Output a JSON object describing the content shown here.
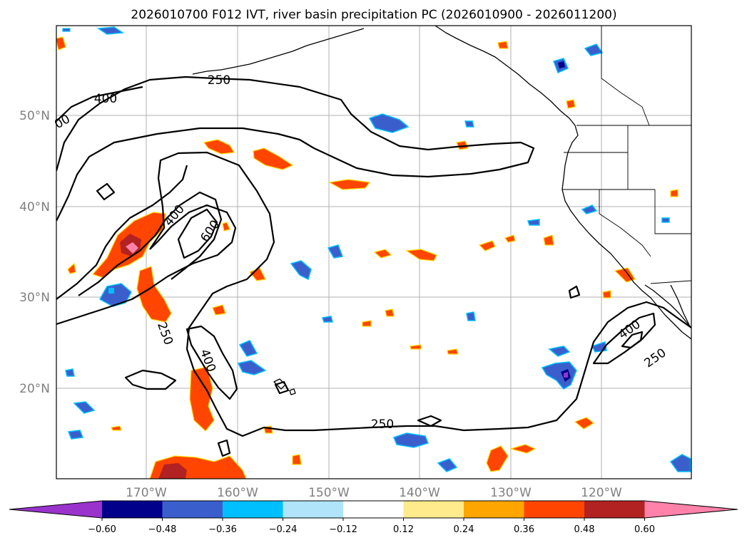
{
  "title": "2026010700 F012 IVT, river basin precipitation PC (2026010900 - 2026011200)",
  "map": {
    "lat_labels": [
      "50°N",
      "40°N",
      "30°N",
      "20°N"
    ],
    "lon_labels": [
      "170°W",
      "160°W",
      "150°W",
      "140°W",
      "130°W",
      "120°W"
    ],
    "grid": true
  },
  "ivt_contours": {
    "levels": [
      "250",
      "400",
      "600"
    ],
    "labels": [
      {
        "text": "250",
        "name": "ivt-label-250-north"
      },
      {
        "text": "400",
        "name": "ivt-label-400-northwest"
      },
      {
        "text": "00",
        "name": "ivt-label-partial-edge"
      },
      {
        "text": "400",
        "name": "ivt-label-400-central"
      },
      {
        "text": "600",
        "name": "ivt-label-600-central"
      },
      {
        "text": "250",
        "name": "ivt-label-250-southwest"
      },
      {
        "text": "400",
        "name": "ivt-label-400-south"
      },
      {
        "text": "250",
        "name": "ivt-label-250-south"
      },
      {
        "text": "400",
        "name": "ivt-label-400-east"
      },
      {
        "text": "250",
        "name": "ivt-label-250-east"
      }
    ]
  },
  "colorbar": {
    "ticks": [
      "−0.60",
      "−0.48",
      "−0.36",
      "−0.24",
      "−0.12",
      "0.12",
      "0.24",
      "0.36",
      "0.48",
      "0.60"
    ],
    "tick_values": [
      -0.6,
      -0.48,
      -0.36,
      -0.24,
      -0.12,
      0.12,
      0.24,
      0.36,
      0.48,
      0.6
    ],
    "colors": [
      "#9933cc",
      "#00008b",
      "#3a5fcd",
      "#00bfff",
      "#afe4fa",
      "#ffffff",
      "#ffea8c",
      "#ffa500",
      "#ff4500",
      "#b22222",
      "#ff82ab"
    ],
    "extend": "both"
  }
}
